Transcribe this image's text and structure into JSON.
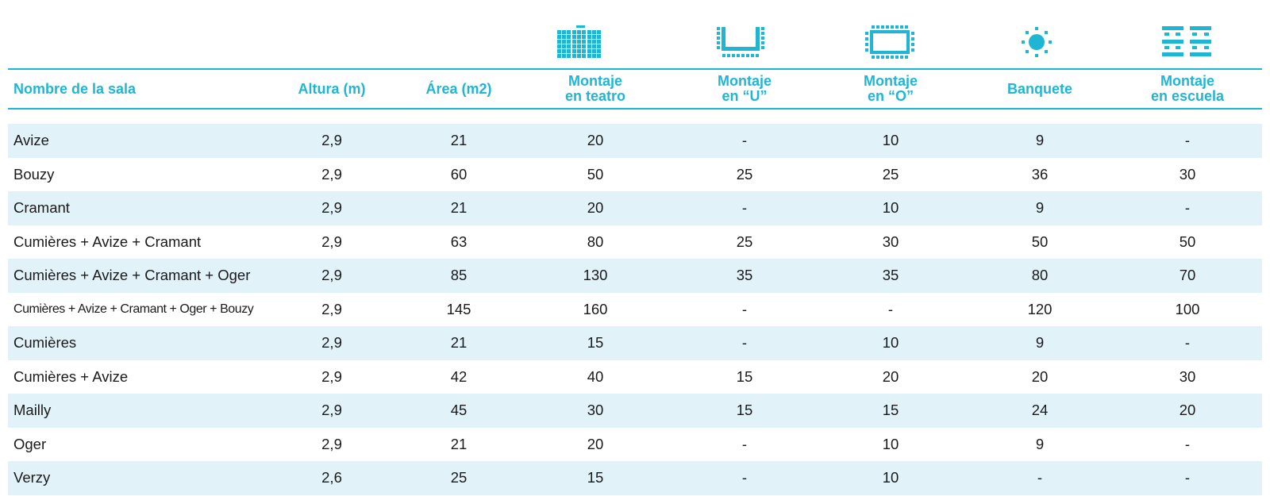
{
  "accent_color": "#1fb6d3",
  "row_shade_color": "#e1f2f9",
  "icons": [
    "theatre-setup-icon",
    "u-shape-setup-icon",
    "o-shape-setup-icon",
    "banquet-setup-icon",
    "classroom-setup-icon"
  ],
  "header": {
    "name": "Nombre de la sala",
    "height": "Altura (m)",
    "area": "Área (m2)",
    "theatre_l1": "Montaje",
    "theatre_l2": "en teatro",
    "u_l1": "Montaje",
    "u_l2": "en “U”",
    "o_l1": "Montaje",
    "o_l2": "en “O”",
    "banquet": "Banquete",
    "school_l1": "Montaje",
    "school_l2": "en escuela"
  },
  "rows": [
    {
      "name": "Avize",
      "height": "2,9",
      "area": "21",
      "theatre": "20",
      "u": "-",
      "o": "10",
      "banquet": "9",
      "school": "-"
    },
    {
      "name": "Bouzy",
      "height": "2,9",
      "area": "60",
      "theatre": "50",
      "u": "25",
      "o": "25",
      "banquet": "36",
      "school": "30"
    },
    {
      "name": "Cramant",
      "height": "2,9",
      "area": "21",
      "theatre": "20",
      "u": "-",
      "o": "10",
      "banquet": "9",
      "school": "-"
    },
    {
      "name": "Cumières + Avize + Cramant",
      "height": "2,9",
      "area": "63",
      "theatre": "80",
      "u": "25",
      "o": "30",
      "banquet": "50",
      "school": "50"
    },
    {
      "name": "Cumières + Avize + Cramant + Oger",
      "height": "2,9",
      "area": "85",
      "theatre": "130",
      "u": "35",
      "o": "35",
      "banquet": "80",
      "school": "70"
    },
    {
      "name": "Cumières + Avize + Cramant + Oger + Bouzy",
      "height": "2,9",
      "area": "145",
      "theatre": "160",
      "u": "-",
      "o": "-",
      "banquet": "120",
      "school": "100"
    },
    {
      "name": "Cumières",
      "height": "2,9",
      "area": "21",
      "theatre": "15",
      "u": "-",
      "o": "10",
      "banquet": "9",
      "school": "-"
    },
    {
      "name": "Cumières + Avize",
      "height": "2,9",
      "area": "42",
      "theatre": "40",
      "u": "15",
      "o": "20",
      "banquet": "20",
      "school": "30"
    },
    {
      "name": "Mailly",
      "height": "2,9",
      "area": "45",
      "theatre": "30",
      "u": "15",
      "o": "15",
      "banquet": "24",
      "school": "20"
    },
    {
      "name": "Oger",
      "height": "2,9",
      "area": "21",
      "theatre": "20",
      "u": "-",
      "o": "10",
      "banquet": "9",
      "school": "-"
    },
    {
      "name": "Verzy",
      "height": "2,6",
      "area": "25",
      "theatre": "15",
      "u": "-",
      "o": "10",
      "banquet": "-",
      "school": "-"
    }
  ]
}
